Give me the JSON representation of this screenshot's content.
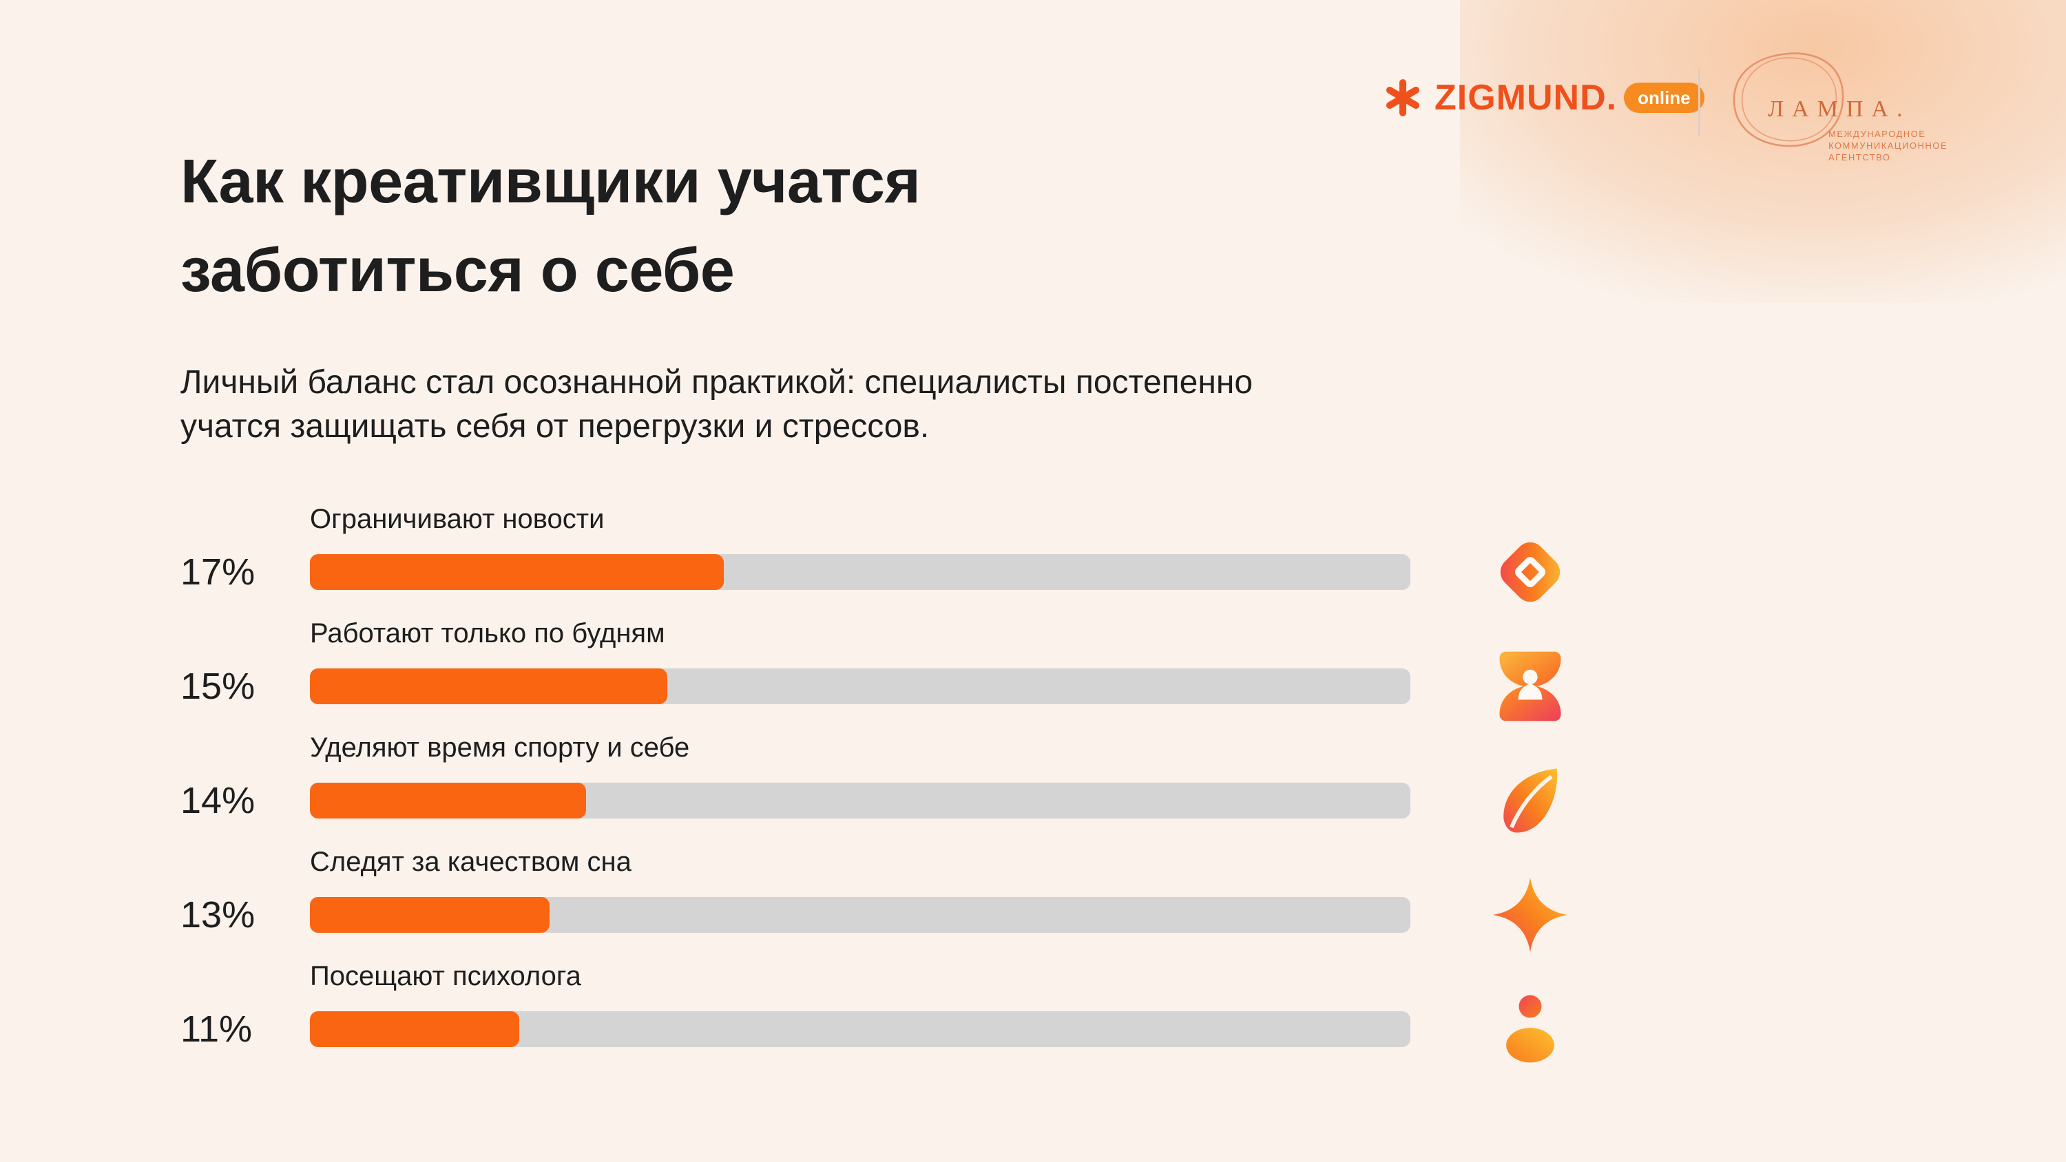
{
  "page": {
    "background": "#faf2eb",
    "accent": "#f96511",
    "track_color": "#d4d4d4",
    "text_color": "#1e1e1e",
    "glow_color": "#f7c6a0"
  },
  "logos": {
    "zigmund": {
      "name": "ZIGMUND.",
      "badge": "online",
      "brand_color": "#f0511c"
    },
    "lampa": {
      "name": "ЛАМПА.",
      "tagline_lines": [
        "МЕЖДУНАРОДНОЕ",
        "КОММУНИКАЦИОННОЕ",
        "АГЕНТСТВО"
      ],
      "brand_color": "#cf6a3a"
    }
  },
  "title_lines": [
    "Как креативщики учатся",
    "заботиться о себе"
  ],
  "subtitle_lines": [
    "Личный баланс стал осознанной практикой: специалисты постепенно",
    "учатся защищать себя от перегрузки и стрессов."
  ],
  "chart_data": {
    "type": "bar",
    "orientation": "horizontal",
    "title": "Как креативщики учатся заботиться о себе",
    "xlabel": "",
    "ylabel": "",
    "grid": false,
    "legend": false,
    "value_suffix": "%",
    "bar_color": "#f96511",
    "track_color": "#d4d4d4",
    "categories": [
      "Ограничивают новости",
      "Работают только по будням",
      "Уделяют время спорту и себе",
      "Следят за качеством сна",
      "Посещают психолога"
    ],
    "values": [
      17,
      15,
      14,
      13,
      11
    ],
    "rows": [
      {
        "label": "Ограничивают новости",
        "value": 17,
        "value_label": "17%",
        "fill_fraction": 0.376,
        "icon": "gem-icon"
      },
      {
        "label": "Работают только по будням",
        "value": 15,
        "value_label": "15%",
        "fill_fraction": 0.325,
        "icon": "hourglass-icon"
      },
      {
        "label": "Уделяют время спорту и себе",
        "value": 14,
        "value_label": "14%",
        "fill_fraction": 0.251,
        "icon": "leaf-icon"
      },
      {
        "label": "Следят за качеством сна",
        "value": 13,
        "value_label": "13%",
        "fill_fraction": 0.218,
        "icon": "sparkle-icon"
      },
      {
        "label": "Посещают психолога",
        "value": 11,
        "value_label": "11%",
        "fill_fraction": 0.19,
        "icon": "person-icon"
      }
    ]
  }
}
